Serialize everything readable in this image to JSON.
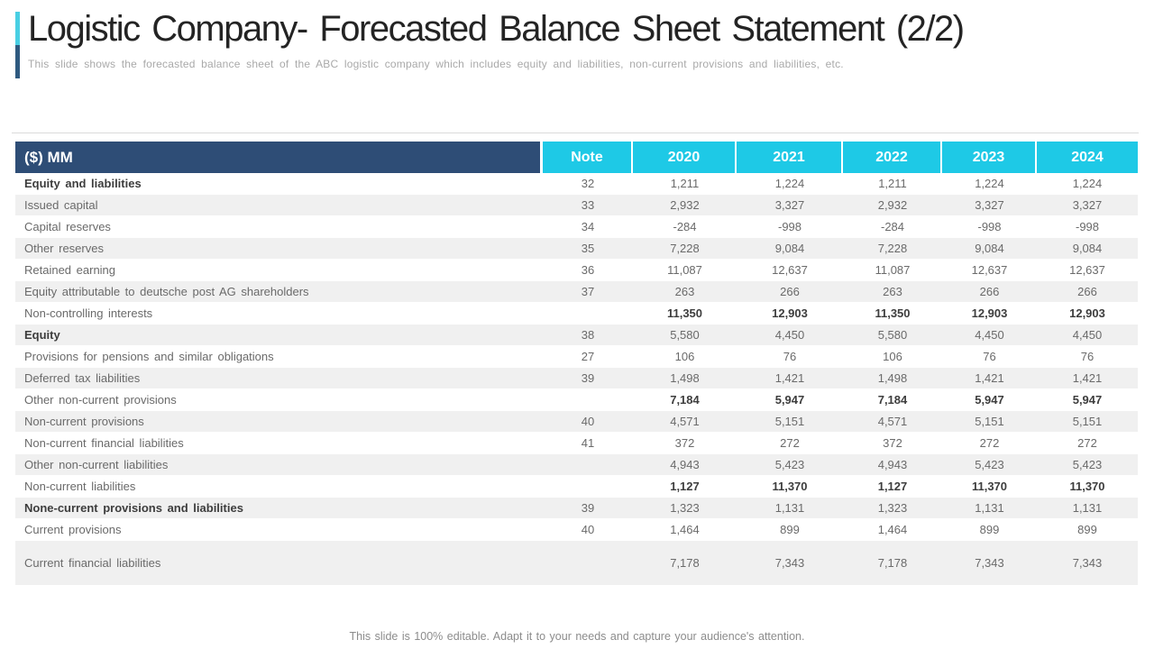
{
  "slide": {
    "title": "Logistic Company- Forecasted Balance Sheet Statement (2/2)",
    "subtitle": "This slide shows the forecasted balance sheet of the ABC logistic company which includes equity and liabilities, non-current provisions and liabilities, etc.",
    "footer": "This slide is 100% editable. Adapt it to your needs and capture your audience's attention."
  },
  "colors": {
    "header_dark_blue": "#2e4d76",
    "header_cyan": "#1ec9e6",
    "row_alt_gray": "#f0f0f0",
    "accent_cyan": "#49cfe3",
    "accent_steel_blue": "#2f5a80"
  },
  "table": {
    "unit_header": "($) MM",
    "columns": [
      "Note",
      "2020",
      "2021",
      "2022",
      "2023",
      "2024"
    ],
    "rows": [
      {
        "label": "Equity and liabilities",
        "label_bold": true,
        "values_bold": false,
        "note": "32",
        "values": [
          "1,211",
          "1,224",
          "1,211",
          "1,224",
          "1,224"
        ]
      },
      {
        "label": "Issued capital",
        "label_bold": false,
        "values_bold": false,
        "note": "33",
        "values": [
          "2,932",
          "3,327",
          "2,932",
          "3,327",
          "3,327"
        ]
      },
      {
        "label": "Capital reserves",
        "label_bold": false,
        "values_bold": false,
        "note": "34",
        "values": [
          "-284",
          "-998",
          "-284",
          "-998",
          "-998"
        ]
      },
      {
        "label": "Other reserves",
        "label_bold": false,
        "values_bold": false,
        "note": "35",
        "values": [
          "7,228",
          "9,084",
          "7,228",
          "9,084",
          "9,084"
        ]
      },
      {
        "label": "Retained earning",
        "label_bold": false,
        "values_bold": false,
        "note": "36",
        "values": [
          "11,087",
          "12,637",
          "11,087",
          "12,637",
          "12,637"
        ]
      },
      {
        "label": "Equity attributable to deutsche post AG shareholders",
        "label_bold": false,
        "values_bold": false,
        "note": "37",
        "values": [
          "263",
          "266",
          "263",
          "266",
          "266"
        ]
      },
      {
        "label": "Non-controlling interests",
        "label_bold": false,
        "values_bold": true,
        "note": "",
        "values": [
          "11,350",
          "12,903",
          "11,350",
          "12,903",
          "12,903"
        ]
      },
      {
        "label": "Equity",
        "label_bold": true,
        "values_bold": false,
        "note": "38",
        "values": [
          "5,580",
          "4,450",
          "5,580",
          "4,450",
          "4,450"
        ]
      },
      {
        "label": "Provisions for pensions and similar obligations",
        "label_bold": false,
        "values_bold": false,
        "note": "27",
        "values": [
          "106",
          "76",
          "106",
          "76",
          "76"
        ]
      },
      {
        "label": "Deferred tax liabilities",
        "label_bold": false,
        "values_bold": false,
        "note": "39",
        "values": [
          "1,498",
          "1,421",
          "1,498",
          "1,421",
          "1,421"
        ]
      },
      {
        "label": "Other non-current provisions",
        "label_bold": false,
        "values_bold": true,
        "note": "",
        "values": [
          "7,184",
          "5,947",
          "7,184",
          "5,947",
          "5,947"
        ]
      },
      {
        "label": "Non-current provisions",
        "label_bold": false,
        "values_bold": false,
        "note": "40",
        "values": [
          "4,571",
          "5,151",
          "4,571",
          "5,151",
          "5,151"
        ]
      },
      {
        "label": "Non-current financial liabilities",
        "label_bold": false,
        "values_bold": false,
        "note": "41",
        "values": [
          "372",
          "272",
          "372",
          "272",
          "272"
        ]
      },
      {
        "label": "Other non-current liabilities",
        "label_bold": false,
        "values_bold": false,
        "note": "",
        "values": [
          "4,943",
          "5,423",
          "4,943",
          "5,423",
          "5,423"
        ]
      },
      {
        "label": "Non-current liabilities",
        "label_bold": false,
        "values_bold": true,
        "note": "",
        "values": [
          "1,127",
          "11,370",
          "1,127",
          "11,370",
          "11,370"
        ]
      },
      {
        "label": "None-current provisions and liabilities",
        "label_bold": true,
        "values_bold": false,
        "note": "39",
        "values": [
          "1,323",
          "1,131",
          "1,323",
          "1,131",
          "1,131"
        ]
      },
      {
        "label": "Current provisions",
        "label_bold": false,
        "values_bold": false,
        "note": "40",
        "values": [
          "1,464",
          "899",
          "1,464",
          "899",
          "899"
        ]
      },
      {
        "label": "Current financial liabilities",
        "label_bold": false,
        "values_bold": false,
        "note": "",
        "tall": true,
        "values": [
          "7,178",
          "7,343",
          "7,178",
          "7,343",
          "7,343"
        ]
      }
    ]
  }
}
